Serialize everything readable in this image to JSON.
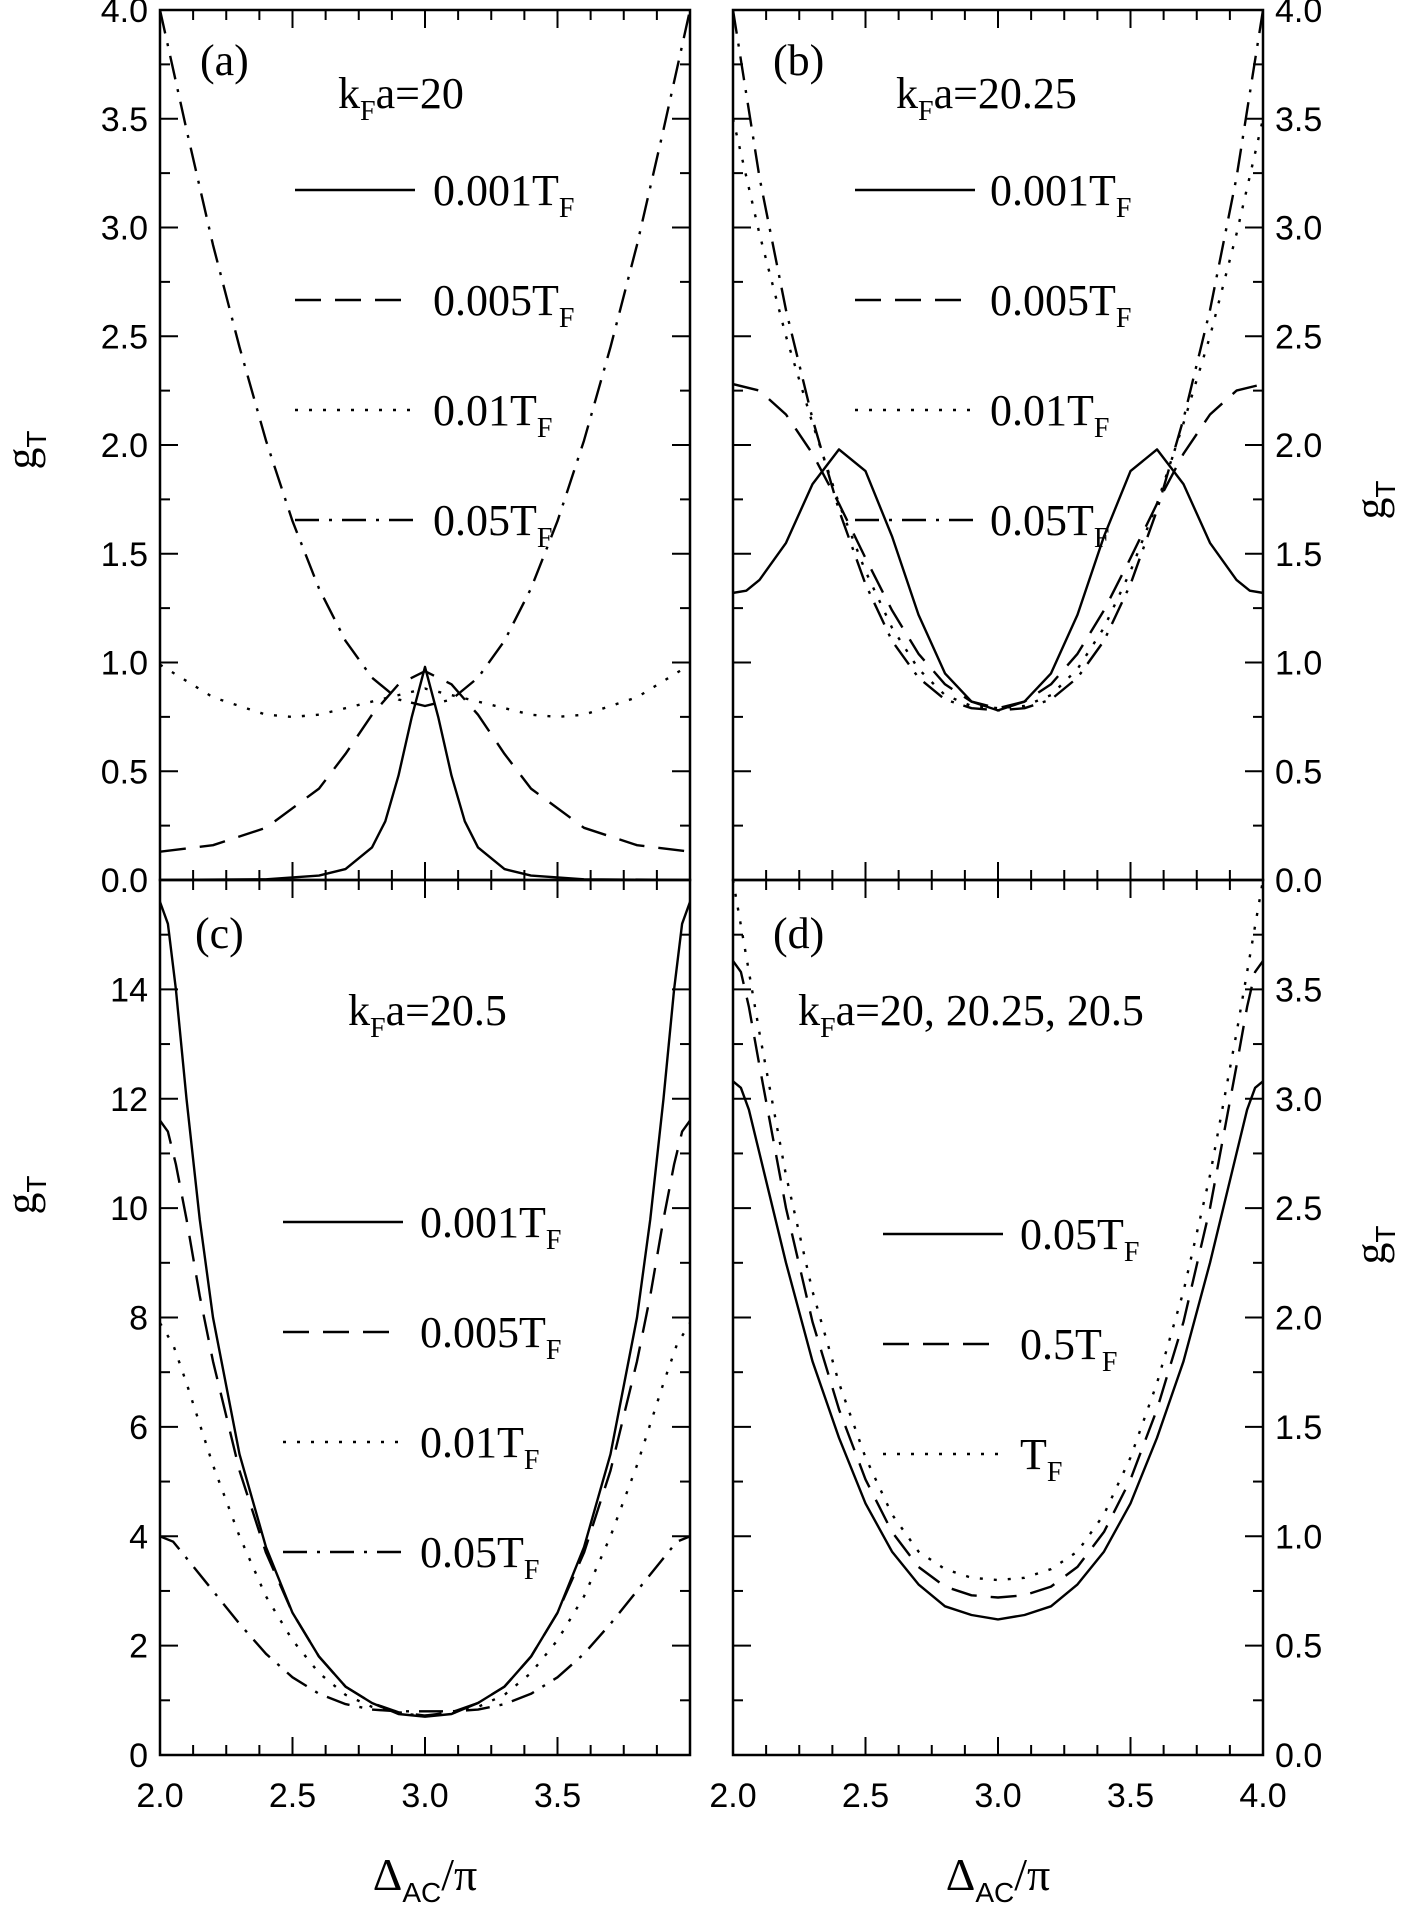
{
  "figure": {
    "x_axis_label": "Δ",
    "x_axis_label_sub": "AC",
    "x_axis_label_tail": "/π",
    "y_axis_label": "g",
    "y_axis_label_sub": "T"
  },
  "chart_data": [
    {
      "type": "line",
      "panel": "a",
      "panel_label": "(a)",
      "title": "k",
      "title_sub": "F",
      "title_tail": "a=20",
      "xlim": [
        2.0,
        4.0
      ],
      "ylim": [
        0.0,
        4.0
      ],
      "yticks": [
        0.0,
        0.5,
        1.0,
        1.5,
        2.0,
        2.5,
        3.0,
        3.5,
        4.0
      ],
      "yticklabels": [
        "0.0",
        "0.5",
        "1.0",
        "1.5",
        "2.0",
        "2.5",
        "3.0",
        "3.5",
        "4.0"
      ],
      "series": [
        {
          "name": "0.001T",
          "name_sub": "F",
          "style": "solid",
          "x": [
            2.0,
            2.4,
            2.6,
            2.7,
            2.8,
            2.85,
            2.9,
            2.95,
            3.0,
            3.05,
            3.1,
            3.15,
            3.2,
            3.3,
            3.4,
            3.6,
            4.0
          ],
          "y": [
            0.0,
            0.003,
            0.02,
            0.05,
            0.15,
            0.27,
            0.48,
            0.75,
            0.98,
            0.75,
            0.48,
            0.27,
            0.15,
            0.05,
            0.02,
            0.003,
            0.0
          ]
        },
        {
          "name": "0.005T",
          "name_sub": "F",
          "style": "dashed",
          "x": [
            2.0,
            2.2,
            2.4,
            2.6,
            2.7,
            2.8,
            2.9,
            3.0,
            3.1,
            3.2,
            3.3,
            3.4,
            3.6,
            3.8,
            4.0
          ],
          "y": [
            0.13,
            0.16,
            0.24,
            0.42,
            0.58,
            0.76,
            0.9,
            0.96,
            0.9,
            0.76,
            0.58,
            0.42,
            0.24,
            0.16,
            0.13
          ]
        },
        {
          "name": "0.01T",
          "name_sub": "F",
          "style": "dotted",
          "x": [
            2.0,
            2.2,
            2.4,
            2.5,
            2.6,
            2.8,
            3.0,
            3.2,
            3.4,
            3.5,
            3.6,
            3.8,
            4.0
          ],
          "y": [
            0.99,
            0.84,
            0.76,
            0.75,
            0.76,
            0.82,
            0.88,
            0.82,
            0.76,
            0.75,
            0.76,
            0.84,
            0.99
          ]
        },
        {
          "name": "0.05T",
          "name_sub": "F",
          "style": "dashdot",
          "x": [
            2.0,
            2.1,
            2.2,
            2.3,
            2.4,
            2.5,
            2.6,
            2.7,
            2.8,
            2.9,
            3.0,
            3.1,
            3.2,
            3.3,
            3.4,
            3.5,
            3.6,
            3.7,
            3.8,
            3.9,
            4.0
          ],
          "y": [
            4.0,
            3.45,
            2.92,
            2.45,
            2.02,
            1.65,
            1.34,
            1.1,
            0.93,
            0.83,
            0.8,
            0.83,
            0.93,
            1.1,
            1.34,
            1.65,
            2.02,
            2.45,
            2.92,
            3.45,
            4.0
          ]
        }
      ]
    },
    {
      "type": "line",
      "panel": "b",
      "panel_label": "(b)",
      "title": "k",
      "title_sub": "F",
      "title_tail": "a=20.25",
      "xlim": [
        2.0,
        4.0
      ],
      "ylim": [
        0.0,
        4.0
      ],
      "yticks": [
        0.0,
        0.5,
        1.0,
        1.5,
        2.0,
        2.5,
        3.0,
        3.5,
        4.0
      ],
      "yticklabels": [
        "0.0",
        "0.5",
        "1.0",
        "1.5",
        "2.0",
        "2.5",
        "3.0",
        "3.5",
        "4.0"
      ],
      "series": [
        {
          "name": "0.001T",
          "name_sub": "F",
          "style": "solid",
          "x": [
            2.0,
            2.05,
            2.1,
            2.2,
            2.3,
            2.4,
            2.5,
            2.6,
            2.7,
            2.8,
            2.9,
            3.0,
            3.1,
            3.2,
            3.3,
            3.4,
            3.5,
            3.6,
            3.7,
            3.8,
            3.9,
            3.95,
            4.0
          ],
          "y": [
            1.32,
            1.33,
            1.38,
            1.55,
            1.82,
            1.98,
            1.88,
            1.58,
            1.22,
            0.95,
            0.82,
            0.78,
            0.82,
            0.95,
            1.22,
            1.58,
            1.88,
            1.98,
            1.82,
            1.55,
            1.38,
            1.33,
            1.32
          ]
        },
        {
          "name": "0.005T",
          "name_sub": "F",
          "style": "dashed",
          "x": [
            2.0,
            2.1,
            2.2,
            2.3,
            2.4,
            2.5,
            2.6,
            2.7,
            2.8,
            2.9,
            3.0,
            3.1,
            3.2,
            3.3,
            3.4,
            3.5,
            3.6,
            3.7,
            3.8,
            3.9,
            4.0
          ],
          "y": [
            2.28,
            2.25,
            2.14,
            1.96,
            1.73,
            1.48,
            1.24,
            1.04,
            0.9,
            0.82,
            0.79,
            0.82,
            0.9,
            1.04,
            1.24,
            1.48,
            1.73,
            1.96,
            2.14,
            2.25,
            2.28
          ]
        },
        {
          "name": "0.01T",
          "name_sub": "F",
          "style": "dotted",
          "x": [
            2.0,
            2.1,
            2.2,
            2.3,
            2.4,
            2.5,
            2.6,
            2.7,
            2.8,
            2.9,
            3.0,
            3.1,
            3.2,
            3.3,
            3.4,
            3.5,
            3.6,
            3.7,
            3.8,
            3.9,
            4.0
          ],
          "y": [
            3.5,
            2.97,
            2.5,
            2.1,
            1.73,
            1.42,
            1.16,
            0.97,
            0.85,
            0.8,
            0.79,
            0.8,
            0.85,
            0.97,
            1.16,
            1.42,
            1.73,
            2.1,
            2.5,
            2.97,
            3.5
          ]
        },
        {
          "name": "0.05T",
          "name_sub": "F",
          "style": "dashdot",
          "x": [
            2.0,
            2.1,
            2.2,
            2.3,
            2.4,
            2.5,
            2.6,
            2.7,
            2.8,
            2.9,
            3.0,
            3.1,
            3.2,
            3.3,
            3.4,
            3.5,
            3.6,
            3.7,
            3.8,
            3.9,
            4.0
          ],
          "y": [
            4.0,
            3.23,
            2.62,
            2.12,
            1.7,
            1.36,
            1.1,
            0.93,
            0.83,
            0.79,
            0.78,
            0.79,
            0.83,
            0.93,
            1.1,
            1.36,
            1.7,
            2.12,
            2.62,
            3.23,
            4.0
          ]
        }
      ]
    },
    {
      "type": "line",
      "panel": "c",
      "panel_label": "(c)",
      "title": "k",
      "title_sub": "F",
      "title_tail": "a=20.5",
      "xlim": [
        2.0,
        4.0
      ],
      "ylim": [
        0,
        16
      ],
      "yticks": [
        0,
        2,
        4,
        6,
        8,
        10,
        12,
        14
      ],
      "yticklabels": [
        "0",
        "2",
        "4",
        "6",
        "8",
        "10",
        "12",
        "14"
      ],
      "xticks": [
        2.0,
        2.5,
        3.0,
        3.5
      ],
      "xticklabels": [
        "2.0",
        "2.5",
        "3.0",
        "3.5"
      ],
      "series": [
        {
          "name": "0.001T",
          "name_sub": "F",
          "style": "solid",
          "x": [
            2.0,
            2.03,
            2.06,
            2.1,
            2.15,
            2.2,
            2.3,
            2.4,
            2.5,
            2.6,
            2.7,
            2.8,
            2.9,
            3.0,
            3.1,
            3.2,
            3.3,
            3.4,
            3.5,
            3.6,
            3.7,
            3.8,
            3.85,
            3.9,
            3.94,
            3.97,
            4.0
          ],
          "y": [
            15.6,
            15.2,
            14.0,
            12.0,
            9.8,
            8.0,
            5.5,
            3.8,
            2.6,
            1.8,
            1.25,
            0.95,
            0.75,
            0.7,
            0.75,
            0.95,
            1.25,
            1.8,
            2.6,
            3.8,
            5.5,
            8.0,
            9.8,
            12.0,
            14.0,
            15.2,
            15.6
          ]
        },
        {
          "name": "0.005T",
          "name_sub": "F",
          "style": "dashed",
          "x": [
            2.0,
            2.03,
            2.06,
            2.1,
            2.15,
            2.2,
            2.3,
            2.4,
            2.5,
            2.6,
            2.7,
            2.8,
            2.9,
            3.0,
            3.1,
            3.2,
            3.3,
            3.4,
            3.5,
            3.6,
            3.7,
            3.8,
            3.85,
            3.9,
            3.94,
            3.97,
            4.0
          ],
          "y": [
            11.6,
            11.4,
            10.8,
            9.8,
            8.4,
            7.2,
            5.2,
            3.7,
            2.6,
            1.8,
            1.25,
            0.95,
            0.78,
            0.72,
            0.78,
            0.95,
            1.25,
            1.8,
            2.6,
            3.7,
            5.2,
            7.2,
            8.4,
            9.8,
            10.8,
            11.4,
            11.6
          ]
        },
        {
          "name": "0.01T",
          "name_sub": "F",
          "style": "dotted",
          "x": [
            2.0,
            2.05,
            2.1,
            2.2,
            2.3,
            2.4,
            2.5,
            2.6,
            2.7,
            2.8,
            2.9,
            3.0,
            3.1,
            3.2,
            3.3,
            3.4,
            3.5,
            3.6,
            3.7,
            3.8,
            3.9,
            3.95,
            4.0
          ],
          "y": [
            7.9,
            7.5,
            6.8,
            5.3,
            4.0,
            2.9,
            2.1,
            1.5,
            1.1,
            0.88,
            0.76,
            0.72,
            0.76,
            0.88,
            1.1,
            1.5,
            2.1,
            2.9,
            4.0,
            5.3,
            6.8,
            7.5,
            7.9
          ]
        },
        {
          "name": "0.05T",
          "name_sub": "F",
          "style": "dashdot",
          "x": [
            2.0,
            2.05,
            2.1,
            2.2,
            2.3,
            2.4,
            2.5,
            2.6,
            2.7,
            2.8,
            2.9,
            3.0,
            3.1,
            3.2,
            3.3,
            3.4,
            3.5,
            3.6,
            3.7,
            3.8,
            3.9,
            3.95,
            4.0
          ],
          "y": [
            4.0,
            3.9,
            3.6,
            3.0,
            2.4,
            1.85,
            1.42,
            1.12,
            0.93,
            0.83,
            0.8,
            0.8,
            0.8,
            0.83,
            0.93,
            1.12,
            1.42,
            1.85,
            2.4,
            3.0,
            3.6,
            3.9,
            4.0
          ]
        }
      ]
    },
    {
      "type": "line",
      "panel": "d",
      "panel_label": "(d)",
      "title": "k",
      "title_sub": "F",
      "title_tail": "a=20, 20.25, 20.5",
      "xlim": [
        2.0,
        4.0
      ],
      "ylim": [
        0.0,
        4.0
      ],
      "yticks": [
        0.0,
        0.5,
        1.0,
        1.5,
        2.0,
        2.5,
        3.0,
        3.5
      ],
      "yticklabels": [
        "0.0",
        "0.5",
        "1.0",
        "1.5",
        "2.0",
        "2.5",
        "3.0",
        "3.5"
      ],
      "xticks": [
        2.0,
        2.5,
        3.0,
        3.5,
        4.0
      ],
      "xticklabels": [
        "2.0",
        "2.5",
        "3.0",
        "3.5",
        "4.0"
      ],
      "series": [
        {
          "name": "0.05T",
          "name_sub": "F",
          "style": "solid",
          "x": [
            2.0,
            2.03,
            2.06,
            2.1,
            2.2,
            2.3,
            2.4,
            2.5,
            2.6,
            2.7,
            2.8,
            2.9,
            3.0,
            3.1,
            3.2,
            3.3,
            3.4,
            3.5,
            3.6,
            3.7,
            3.8,
            3.9,
            3.94,
            3.97,
            4.0
          ],
          "y": [
            3.08,
            3.05,
            2.95,
            2.75,
            2.25,
            1.8,
            1.45,
            1.15,
            0.93,
            0.78,
            0.68,
            0.64,
            0.62,
            0.64,
            0.68,
            0.78,
            0.93,
            1.15,
            1.45,
            1.8,
            2.25,
            2.75,
            2.95,
            3.05,
            3.08
          ]
        },
        {
          "name": "0.5T",
          "name_sub": "F",
          "style": "dashed",
          "x": [
            2.0,
            2.03,
            2.06,
            2.1,
            2.2,
            2.3,
            2.4,
            2.5,
            2.6,
            2.7,
            2.8,
            2.9,
            3.0,
            3.1,
            3.2,
            3.3,
            3.4,
            3.5,
            3.6,
            3.7,
            3.8,
            3.9,
            3.94,
            3.97,
            4.0
          ],
          "y": [
            3.63,
            3.58,
            3.42,
            3.15,
            2.5,
            1.98,
            1.58,
            1.26,
            1.02,
            0.86,
            0.77,
            0.73,
            0.72,
            0.73,
            0.77,
            0.86,
            1.02,
            1.26,
            1.58,
            1.98,
            2.5,
            3.15,
            3.42,
            3.58,
            3.63
          ]
        },
        {
          "name": "T",
          "name_sub": "F",
          "style": "dotted",
          "x": [
            2.0,
            2.05,
            2.1,
            2.2,
            2.3,
            2.4,
            2.5,
            2.6,
            2.7,
            2.8,
            2.9,
            3.0,
            3.1,
            3.2,
            3.3,
            3.4,
            3.5,
            3.6,
            3.7,
            3.8,
            3.9,
            3.95,
            4.0
          ],
          "y": [
            4.0,
            3.65,
            3.3,
            2.65,
            2.12,
            1.7,
            1.36,
            1.1,
            0.93,
            0.85,
            0.81,
            0.8,
            0.81,
            0.85,
            0.93,
            1.1,
            1.36,
            1.7,
            2.12,
            2.65,
            3.3,
            3.65,
            4.0
          ]
        }
      ]
    }
  ]
}
